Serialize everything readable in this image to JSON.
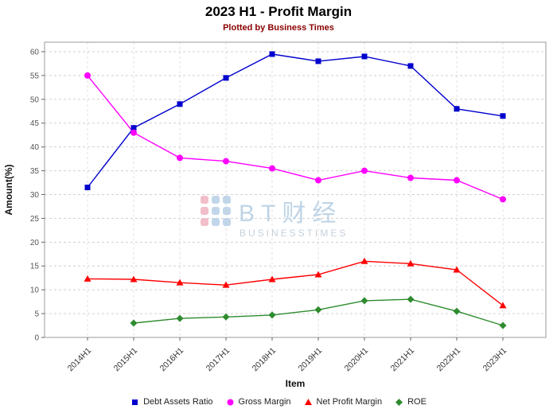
{
  "title": "2023 H1 - Profit Margin",
  "subtitle": "Plotted by Business Times",
  "watermark": {
    "name": "BT财经",
    "caption": "BUSINESSTIMES"
  },
  "chart_data": {
    "type": "line",
    "title": "2023 H1 - Profit Margin",
    "subtitle": "Plotted by Business Times",
    "xlabel": "Item",
    "ylabel": "Amount(%)",
    "ylim": [
      0,
      62
    ],
    "yticks": [
      0,
      5,
      10,
      15,
      20,
      25,
      30,
      35,
      40,
      45,
      50,
      55,
      60
    ],
    "grid": true,
    "legend_position": "bottom",
    "categories": [
      "2014H1",
      "2015H1",
      "2016H1",
      "2017H1",
      "2018H1",
      "2019H1",
      "2020H1",
      "2021H1",
      "2022H1",
      "2023H1"
    ],
    "series": [
      {
        "name": "Debt Assets Ratio",
        "color": "#0000cd",
        "marker": "square",
        "values": [
          31.5,
          44,
          49,
          54.5,
          59.5,
          58,
          59,
          57,
          48,
          46.5
        ]
      },
      {
        "name": "Gross Margin",
        "color": "#ff00ff",
        "marker": "circle",
        "values": [
          55,
          43,
          37.7,
          37,
          35.5,
          33,
          35,
          33.5,
          33,
          29
        ]
      },
      {
        "name": "Net Profit Margin",
        "color": "#ff0000",
        "marker": "triangle",
        "values": [
          12.3,
          12.2,
          11.5,
          11,
          12.2,
          13.2,
          16,
          15.5,
          14.2,
          6.7
        ]
      },
      {
        "name": "ROE",
        "color": "#2e8b2e",
        "marker": "diamond",
        "values": [
          null,
          3,
          4,
          4.3,
          4.7,
          5.8,
          7.7,
          8,
          5.5,
          2.5
        ]
      }
    ]
  }
}
